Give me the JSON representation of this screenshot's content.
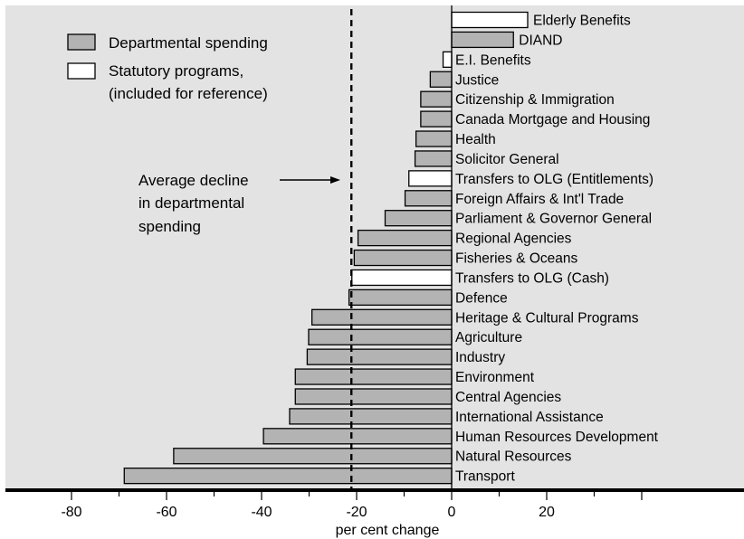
{
  "chart_data": {
    "type": "bar",
    "orientation": "horizontal",
    "xlabel": "per cent change",
    "xlim": [
      -85,
      52
    ],
    "xticks": [
      -80,
      -60,
      -40,
      -20,
      0,
      20
    ],
    "xtick_labels": [
      "-80",
      "-60",
      "-40",
      "-20",
      "0",
      "20"
    ],
    "grid": false,
    "legend_position": "top-left",
    "legend": [
      {
        "kind": "departmental",
        "label": "Departmental spending"
      },
      {
        "kind": "statutory",
        "label": "Statutory programs,",
        "label_line2": "(included for reference)"
      }
    ],
    "reference_line": {
      "value": -21.1,
      "style": "dashed"
    },
    "annotation": {
      "lines": [
        "Average decline",
        "in departmental",
        "spending"
      ]
    },
    "bars": [
      {
        "category": "Elderly Benefits",
        "value": 16.0,
        "kind": "statutory"
      },
      {
        "category": "DIAND",
        "value": 13.0,
        "kind": "departmental"
      },
      {
        "category": "E.I. Benefits",
        "value": -1.8,
        "kind": "statutory"
      },
      {
        "category": "Justice",
        "value": -4.5,
        "kind": "departmental"
      },
      {
        "category": "Citizenship & Immigration",
        "value": -6.5,
        "kind": "departmental"
      },
      {
        "category": "Canada Mortgage and Housing",
        "value": -6.5,
        "kind": "departmental"
      },
      {
        "category": "Health",
        "value": -7.5,
        "kind": "departmental"
      },
      {
        "category": "Solicitor General",
        "value": -7.7,
        "kind": "departmental"
      },
      {
        "category": "Transfers to OLG (Entitlements)",
        "value": -9.0,
        "kind": "statutory"
      },
      {
        "category": "Foreign Affairs & Int'l Trade",
        "value": -9.8,
        "kind": "departmental"
      },
      {
        "category": "Parliament & Governor General",
        "value": -14.0,
        "kind": "departmental"
      },
      {
        "category": "Regional Agencies",
        "value": -19.7,
        "kind": "departmental"
      },
      {
        "category": "Fisheries & Oceans",
        "value": -20.5,
        "kind": "departmental"
      },
      {
        "category": "Transfers to OLG (Cash)",
        "value": -21.0,
        "kind": "statutory"
      },
      {
        "category": "Defence",
        "value": -21.6,
        "kind": "departmental"
      },
      {
        "category": "Heritage & Cultural Programs",
        "value": -29.4,
        "kind": "departmental"
      },
      {
        "category": "Agriculture",
        "value": -30.1,
        "kind": "departmental"
      },
      {
        "category": "Industry",
        "value": -30.4,
        "kind": "departmental"
      },
      {
        "category": "Environment",
        "value": -32.9,
        "kind": "departmental"
      },
      {
        "category": "Central Agencies",
        "value": -32.9,
        "kind": "departmental"
      },
      {
        "category": "International Assistance",
        "value": -34.1,
        "kind": "departmental"
      },
      {
        "category": "Human Resources Development",
        "value": -39.6,
        "kind": "departmental"
      },
      {
        "category": "Natural Resources",
        "value": -58.5,
        "kind": "departmental"
      },
      {
        "category": "Transport",
        "value": -68.9,
        "kind": "departmental"
      }
    ]
  },
  "colors": {
    "plot_background": "#e3e3e3",
    "departmental_fill": "#b3b3b3",
    "statutory_fill": "#ffffff",
    "bar_stroke": "#000000",
    "axis": "#000000"
  }
}
